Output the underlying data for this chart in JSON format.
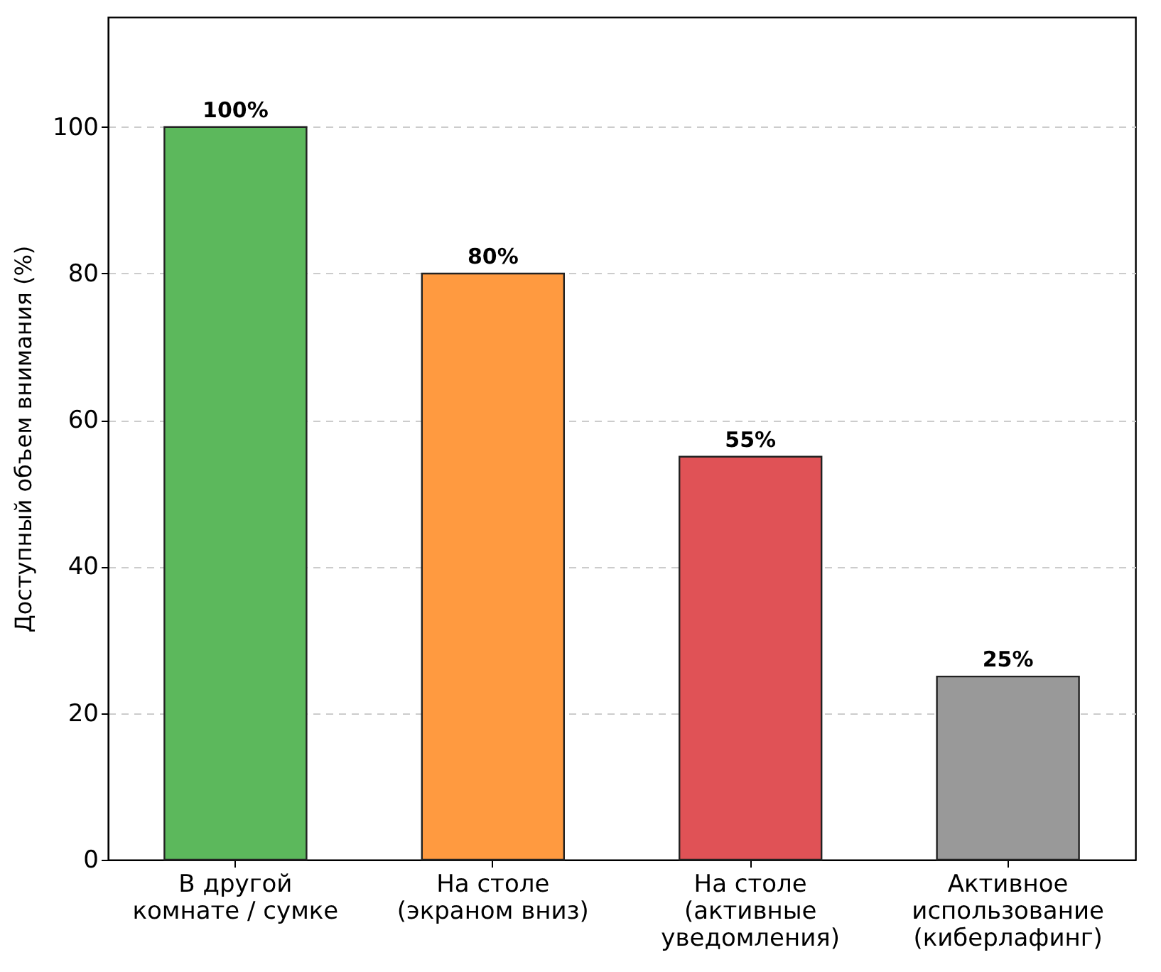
{
  "chart_data": {
    "type": "bar",
    "ylabel": "Доступный объем внимания (%)",
    "categories": [
      "В другой\nкомнате / сумке",
      "На столе\n(экраном вниз)",
      "На столе\n(активные\nуведомления)",
      "Активное\nиспользование\n(киберлафинг)"
    ],
    "values": [
      100,
      80,
      55,
      25
    ],
    "colors": [
      "#5cb85c",
      "#ff9a40",
      "#e05256",
      "#999999"
    ],
    "value_labels": [
      "100%",
      "80%",
      "55%",
      "25%"
    ],
    "ylim": [
      0,
      115
    ],
    "yticks": [
      0,
      20,
      40,
      60,
      80,
      100
    ],
    "grid": "y"
  }
}
